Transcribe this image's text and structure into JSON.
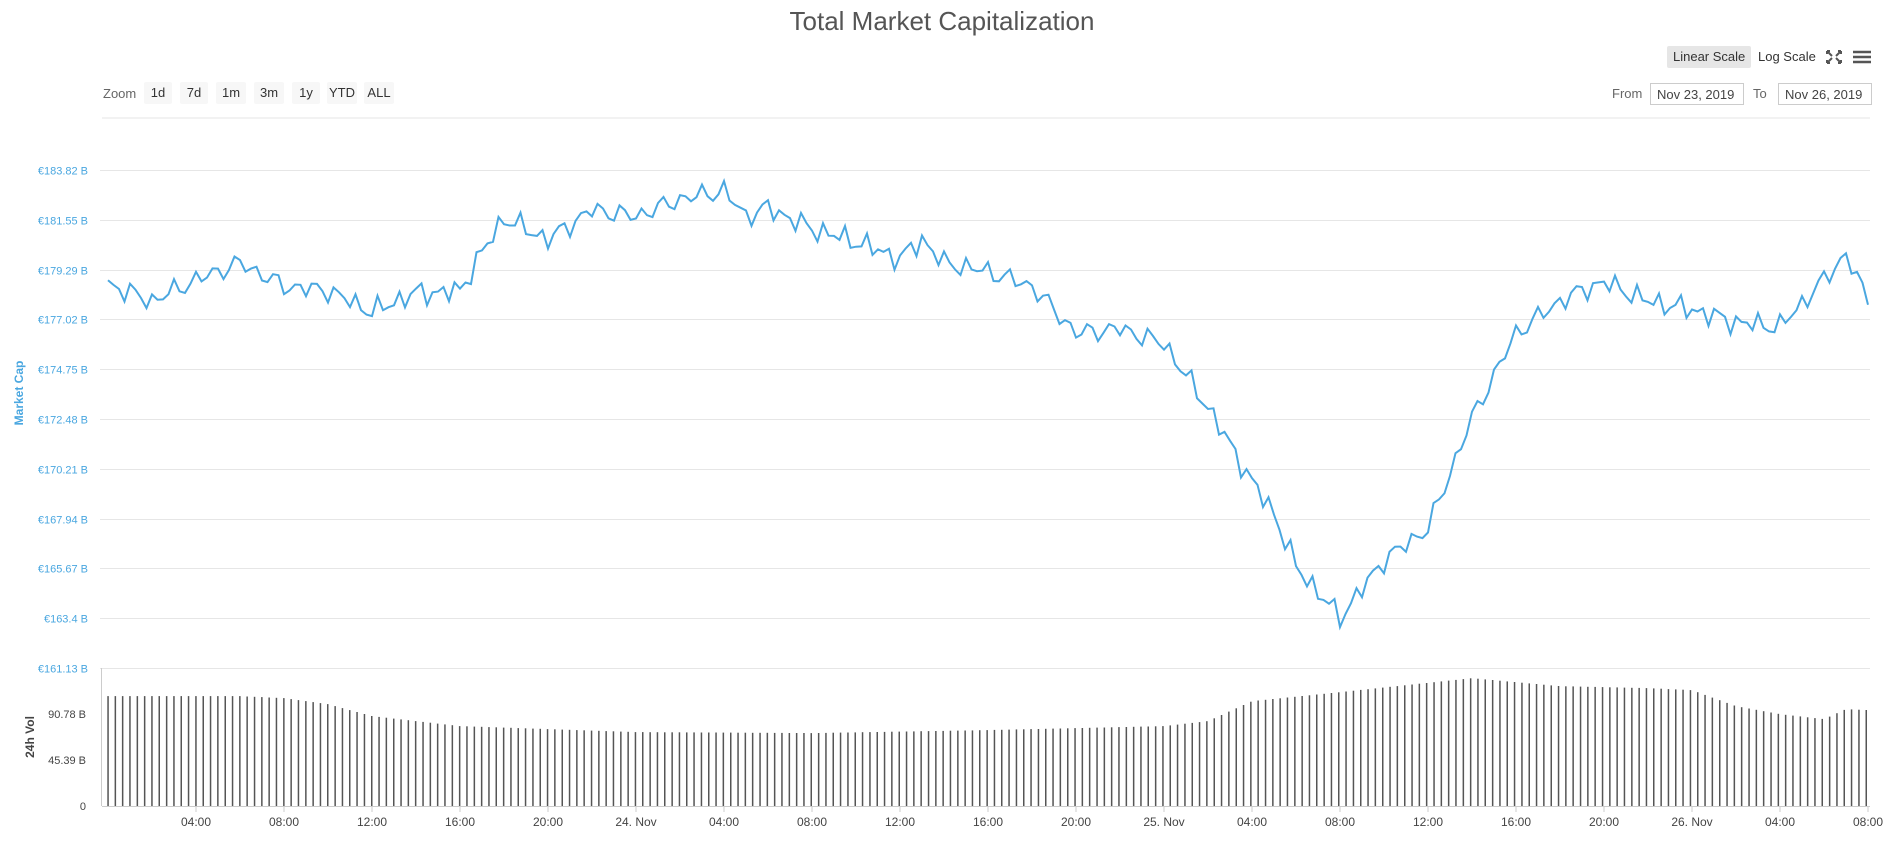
{
  "header": {
    "title": "Total Market Capitalization"
  },
  "toolbar": {
    "zoom_label": "Zoom",
    "zoom_buttons": [
      "1d",
      "7d",
      "1m",
      "3m",
      "1y",
      "YTD",
      "ALL"
    ],
    "linear_scale": "Linear Scale",
    "log_scale": "Log Scale",
    "active_scale": "Linear Scale",
    "fullscreen_icon": "fullscreen-icon",
    "menu_icon": "hamburger-menu-icon"
  },
  "range": {
    "from_label": "From",
    "to_label": "To",
    "from_value": "Nov 23, 2019",
    "to_value": "Nov 26, 2019"
  },
  "colors": {
    "line": "#4aa7e0",
    "bars": "#555555",
    "grid": "#e6e6e6",
    "title": "#555555"
  },
  "chart_data": {
    "type": "line",
    "title": "Total Market Capitalization",
    "ylabel": "Market Cap",
    "y2label": "24h Vol",
    "ylim": [
      161.13,
      186.09
    ],
    "y_ticks": [
      "€183.82 B",
      "€181.55 B",
      "€179.29 B",
      "€177.02 B",
      "€174.75 B",
      "€172.48 B",
      "€170.21 B",
      "€167.94 B",
      "€165.67 B",
      "€163.4 B",
      "€161.13 B"
    ],
    "vol_ticks": [
      "90.78 B",
      "45.39 B",
      "0"
    ],
    "vol_ylim": [
      0,
      136.17
    ],
    "x_ticks": [
      "04:00",
      "08:00",
      "12:00",
      "16:00",
      "20:00",
      "24. Nov",
      "04:00",
      "08:00",
      "12:00",
      "16:00",
      "20:00",
      "25. Nov",
      "04:00",
      "08:00",
      "12:00",
      "16:00",
      "20:00",
      "26. Nov",
      "04:00",
      "08:00"
    ],
    "x_range_hours": [
      0,
      80
    ],
    "x_tick_start_hour": 4,
    "x_tick_step_hours": 4,
    "grid": true,
    "legend": "none",
    "series": [
      {
        "name": "Market Cap",
        "x": [
          0,
          2,
          4,
          6,
          8,
          10,
          12,
          14,
          15,
          16,
          17,
          18,
          20,
          22,
          24,
          26,
          28,
          29,
          30,
          32,
          34,
          36,
          37,
          38,
          40,
          42,
          44,
          46,
          48,
          50,
          52,
          53,
          54,
          56,
          58,
          60,
          62,
          64,
          66,
          67,
          68,
          70,
          72,
          74,
          76,
          78,
          79,
          80
        ],
        "y": [
          179.3,
          178.5,
          179.5,
          180.3,
          179.2,
          179.0,
          178.0,
          178.9,
          178.9,
          179.0,
          180.8,
          182.4,
          181.4,
          182.8,
          182.5,
          183.3,
          183.7,
          182.5,
          182.9,
          181.9,
          181.3,
          180.5,
          181.4,
          180.3,
          179.9,
          179.2,
          177.0,
          177.2,
          176.5,
          173.5,
          170.0,
          168.5,
          166.0,
          163.6,
          166.3,
          167.8,
          173.0,
          177.0,
          178.5,
          179.0,
          179.4,
          178.5,
          178.1,
          177.5,
          177.3,
          179.5,
          180.7,
          178.5
        ]
      }
    ],
    "volume": {
      "name": "24h Vol",
      "x": [
        0,
        6,
        8,
        10,
        12,
        16,
        24,
        32,
        40,
        48,
        50,
        52,
        56,
        62,
        64,
        66,
        70,
        72,
        74,
        76,
        78,
        79,
        80
      ],
      "y": [
        110,
        110,
        108,
        102,
        90,
        80,
        74,
        73,
        76,
        80,
        85,
        105,
        114,
        128,
        124,
        120,
        118,
        116,
        100,
        92,
        87,
        97,
        96
      ]
    }
  }
}
